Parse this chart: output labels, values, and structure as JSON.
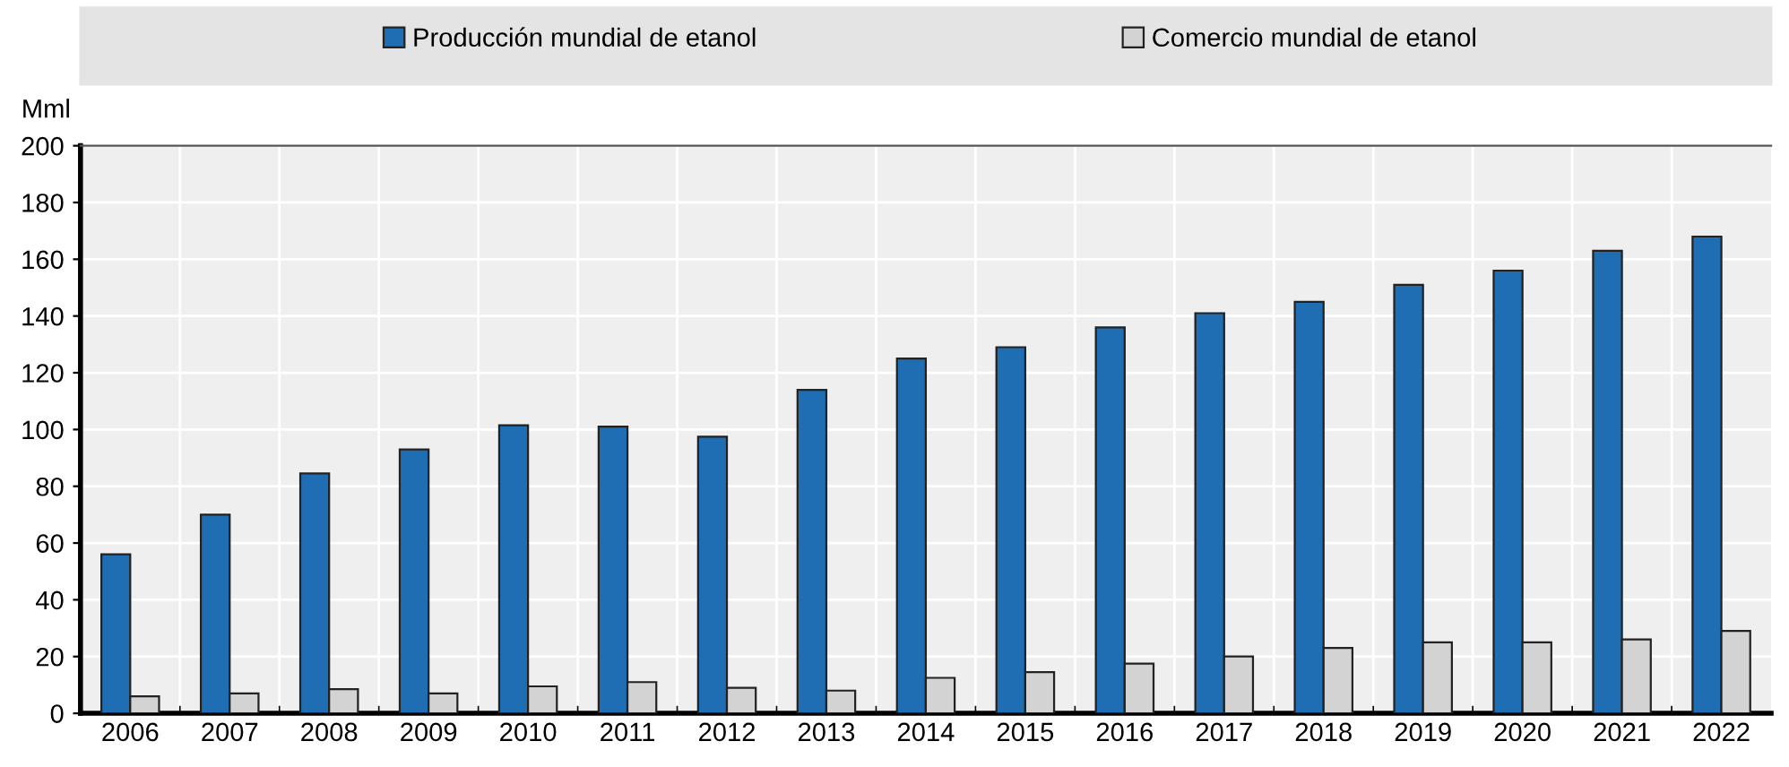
{
  "chart_data": {
    "type": "bar",
    "ylabel": "Mml",
    "categories": [
      "2006",
      "2007",
      "2008",
      "2009",
      "2010",
      "2011",
      "2012",
      "2013",
      "2014",
      "2015",
      "2016",
      "2017",
      "2018",
      "2019",
      "2020",
      "2021",
      "2022"
    ],
    "series": [
      {
        "name": "Producción mundial de etanol",
        "color": "#1f6eb3",
        "values": [
          56,
          70,
          84.5,
          93,
          101.5,
          101,
          97.5,
          114,
          125,
          129,
          136,
          141,
          145,
          151,
          156,
          163,
          168
        ]
      },
      {
        "name": "Comercio mundial de etanol",
        "color": "#d3d3d3",
        "values": [
          6,
          7,
          8.5,
          7,
          9.5,
          11,
          9,
          8,
          12.5,
          14.5,
          17.5,
          20,
          23,
          25,
          25,
          26,
          29
        ]
      }
    ],
    "ylim": [
      0,
      200
    ],
    "yticks": [
      0,
      20,
      40,
      60,
      80,
      100,
      120,
      140,
      160,
      180,
      200
    ],
    "grid": true,
    "legend": "top"
  }
}
